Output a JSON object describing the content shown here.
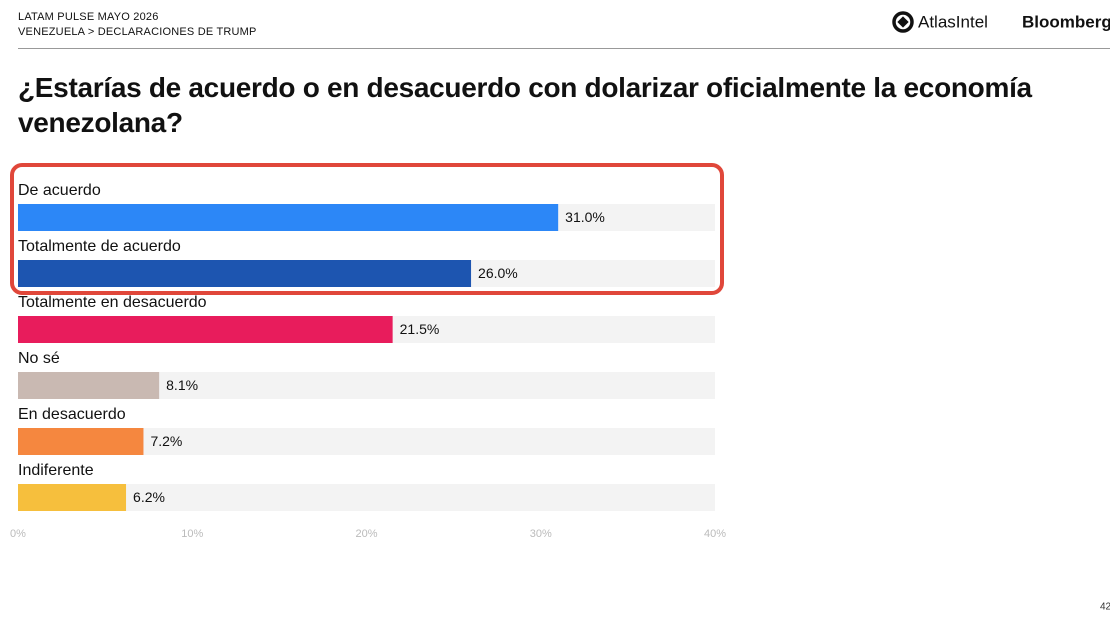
{
  "header": {
    "line1": "LATAM PULSE MAYO 2026",
    "line2": "VENEZUELA > DECLARACIONES DE TRUMP",
    "logo1": "AtlasIntel",
    "logo2": "Bloomberg"
  },
  "page_number": "42",
  "chart_data": {
    "type": "bar",
    "title": "¿Estarías de acuerdo o en desacuerdo con dolarizar oficialmente la economía venezolana?",
    "categories": [
      "De acuerdo",
      "Totalmente de acuerdo",
      "Totalmente en desacuerdo",
      "No sé",
      "En desacuerdo",
      "Indiferente"
    ],
    "values": [
      31.0,
      26.0,
      21.5,
      8.1,
      7.2,
      6.2
    ],
    "value_labels": [
      "31.0%",
      "26.0%",
      "21.5%",
      "8.1%",
      "7.2%",
      "6.2%"
    ],
    "colors": [
      "#2c87f7",
      "#1d55b0",
      "#e81c5c",
      "#c9b9b2",
      "#f5873f",
      "#f6bf3d"
    ],
    "xlim": [
      0,
      40
    ],
    "xticks": [
      {
        "value": 0,
        "label": "0%"
      },
      {
        "value": 10,
        "label": "10%"
      },
      {
        "value": 20,
        "label": "20%"
      },
      {
        "value": 30,
        "label": "30%"
      },
      {
        "value": 40,
        "label": "40%"
      }
    ]
  }
}
